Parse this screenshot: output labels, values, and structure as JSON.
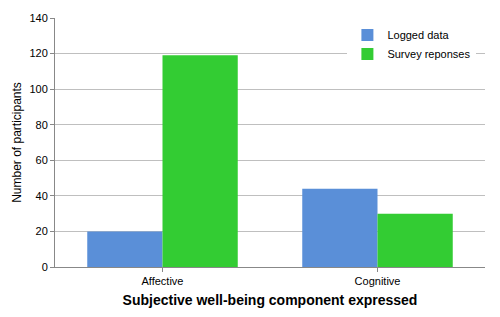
{
  "chart_data": {
    "type": "bar",
    "x_label": "Subjective well-being component expressed",
    "y_label": "Number of participants",
    "categories": [
      "Affective",
      "Cognitive"
    ],
    "series": [
      {
        "name": "Logged data",
        "color": "#5a8fd8",
        "values": [
          20,
          44
        ]
      },
      {
        "name": "Survey reponses",
        "color": "#33cc33",
        "values": [
          119,
          30
        ]
      }
    ],
    "ylim": [
      0,
      140
    ],
    "yticks": [
      0,
      20,
      40,
      60,
      80,
      100,
      120,
      140
    ],
    "grid": true,
    "legend": "upper right"
  }
}
